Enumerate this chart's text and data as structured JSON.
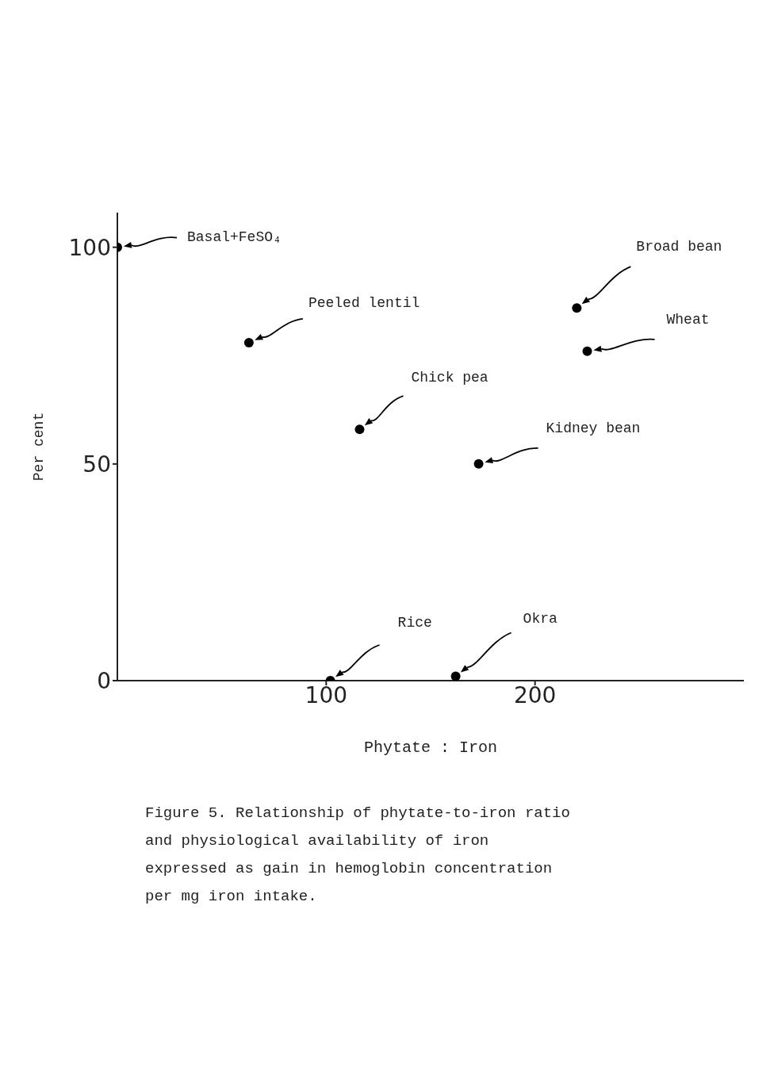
{
  "chart_data": {
    "type": "scatter",
    "xlabel": "Phytate : Iron",
    "ylabel": "Per cent",
    "series": [
      {
        "name": "Basal+FeSO₄",
        "color": "#000000",
        "x": [
          0
        ],
        "values": [
          100
        ]
      },
      {
        "name": "Peeled lentil",
        "color": "#000000",
        "x": [
          63
        ],
        "values": [
          78
        ]
      },
      {
        "name": "Chick pea",
        "color": "#000000",
        "x": [
          116
        ],
        "values": [
          58
        ]
      },
      {
        "name": "Kidney bean",
        "color": "#000000",
        "x": [
          173
        ],
        "values": [
          50
        ]
      },
      {
        "name": "Broad bean",
        "color": "#000000",
        "x": [
          220
        ],
        "values": [
          86
        ]
      },
      {
        "name": "Wheat",
        "color": "#000000",
        "x": [
          225
        ],
        "values": [
          76
        ]
      },
      {
        "name": "Rice",
        "color": "#000000",
        "x": [
          102
        ],
        "values": [
          0
        ]
      },
      {
        "name": "Okra",
        "color": "#000000",
        "x": [
          162
        ],
        "values": [
          1
        ]
      }
    ],
    "xlim": [
      0,
      300
    ],
    "ylim": [
      0,
      108
    ],
    "xticks": [
      100,
      200
    ],
    "yticks": [
      0,
      50,
      100
    ],
    "marker": "circle",
    "annotations": [
      "Figure 5.  Relationship of phytate-to-iron ratio and physiological availability of iron expressed as gain in hemoglobin concentration per mg iron intake."
    ]
  }
}
